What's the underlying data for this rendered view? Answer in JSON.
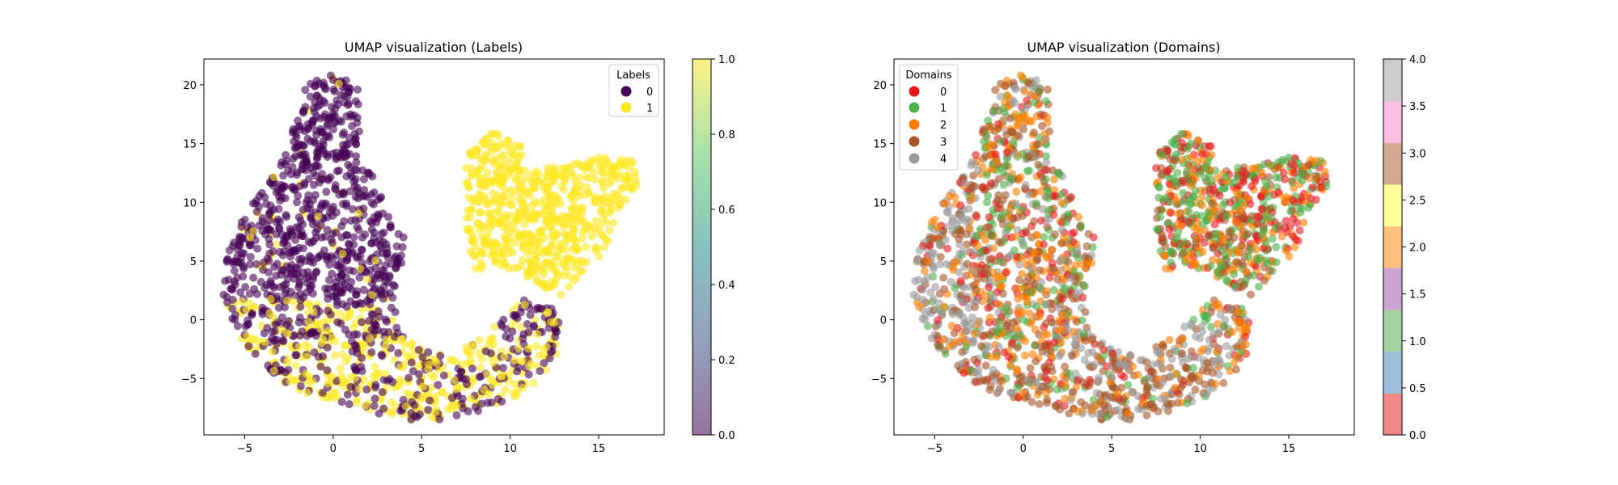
{
  "chart_data": [
    {
      "type": "scatter",
      "title": "UMAP visualization (Labels)",
      "xlim": [
        -7.3,
        18.7
      ],
      "ylim": [
        -9.8,
        22.2
      ],
      "x_ticks": [
        -5,
        0,
        5,
        10,
        15
      ],
      "y_ticks": [
        -5,
        0,
        5,
        10,
        15,
        20
      ],
      "legend": {
        "title": "Labels",
        "placement": "top-right",
        "entries": [
          "0",
          "1"
        ]
      },
      "colors": [
        "#440154",
        "#fde725"
      ],
      "colorbar": {
        "cmap": "viridis",
        "range": [
          0,
          1
        ],
        "ticks": [
          "0.0",
          "0.2",
          "0.4",
          "0.6",
          "0.8",
          "1.0"
        ]
      },
      "grid": false,
      "point_alpha": 0.6
    },
    {
      "type": "scatter",
      "title": "UMAP visualization (Domains)",
      "xlim": [
        -7.3,
        18.7
      ],
      "ylim": [
        -9.8,
        22.2
      ],
      "x_ticks": [
        -5,
        0,
        5,
        10,
        15
      ],
      "y_ticks": [
        -5,
        0,
        5,
        10,
        15,
        20
      ],
      "legend": {
        "title": "Domains",
        "placement": "top-left",
        "entries": [
          "0",
          "1",
          "2",
          "3",
          "4"
        ]
      },
      "colors": [
        "#e41a1c",
        "#4daf4a",
        "#ff7f00",
        "#a65628",
        "#999999"
      ],
      "colorbar": {
        "cmap": "Set1",
        "range": [
          0,
          4
        ],
        "ticks": [
          "0.0",
          "0.5",
          "1.0",
          "1.5",
          "2.0",
          "2.5",
          "3.0",
          "3.5",
          "4.0"
        ],
        "colors": [
          "#f08a8b",
          "#9fbfdc",
          "#a4d3a1",
          "#cca6d2",
          "#ffbf80",
          "#ffff99",
          "#d4aa93",
          "#f8bfe0",
          "#cccccc"
        ]
      },
      "grid": false,
      "point_alpha": 0.6
    }
  ]
}
